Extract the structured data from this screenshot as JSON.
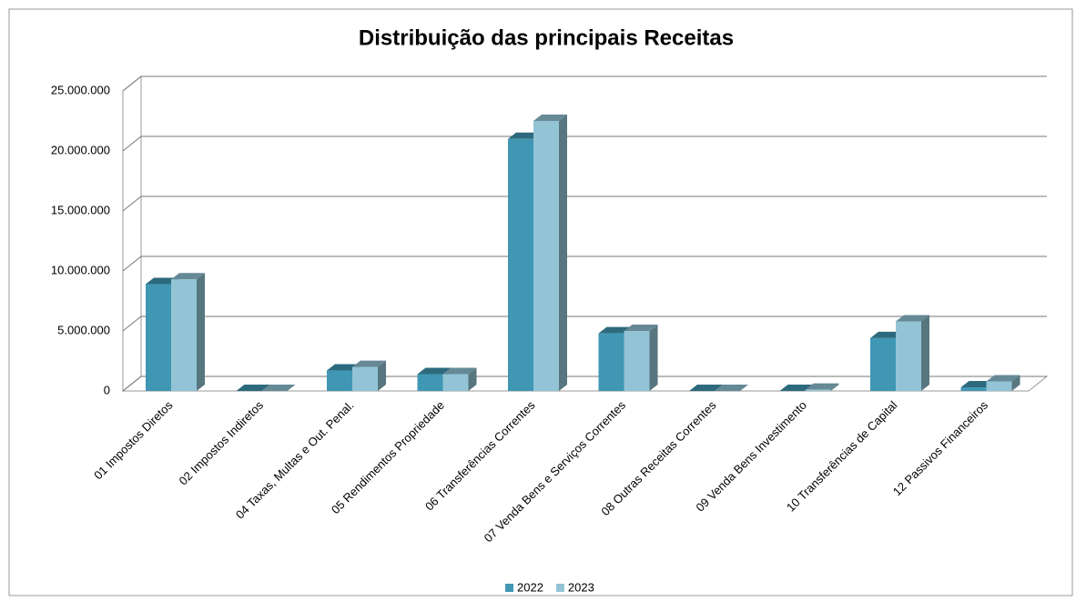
{
  "chart_data": {
    "type": "bar3d",
    "title": "Distribuição das principais Receitas",
    "categories": [
      "01 Impostos Diretos",
      "02 Impostos Indiretos",
      "04 Taxas, Multas e Out. Penal.",
      "05 Rendimentos Propriedade",
      "06 Transferências Correntes",
      "07 Venda Bens e Serviços Correntes",
      "08 Outras Receitas Correntes",
      "09 Venda Bens Investimento",
      "10 Transferências de Capital",
      "12 Passivos Financeiros"
    ],
    "series": [
      {
        "name": "2022",
        "color": "#4097b3",
        "values": [
          8900000,
          0,
          1700000,
          1400000,
          21000000,
          4800000,
          0,
          0,
          4400000,
          300000
        ]
      },
      {
        "name": "2023",
        "color": "#92c4d6",
        "values": [
          9300000,
          0,
          2000000,
          1400000,
          22500000,
          5000000,
          0,
          100000,
          5800000,
          800000
        ]
      }
    ],
    "ylim": [
      0,
      25000000
    ],
    "yticks": [
      0,
      {
        "value": 5000000,
        "label": "5.000.000"
      },
      {
        "value": 10000000,
        "label": "10.000.000"
      },
      {
        "value": 15000000,
        "label": "15.000.000"
      },
      {
        "value": 20000000,
        "label": "20.000.000"
      },
      {
        "value": 25000000,
        "label": "25.000.000"
      }
    ],
    "grid": true,
    "legend": "bottom"
  }
}
